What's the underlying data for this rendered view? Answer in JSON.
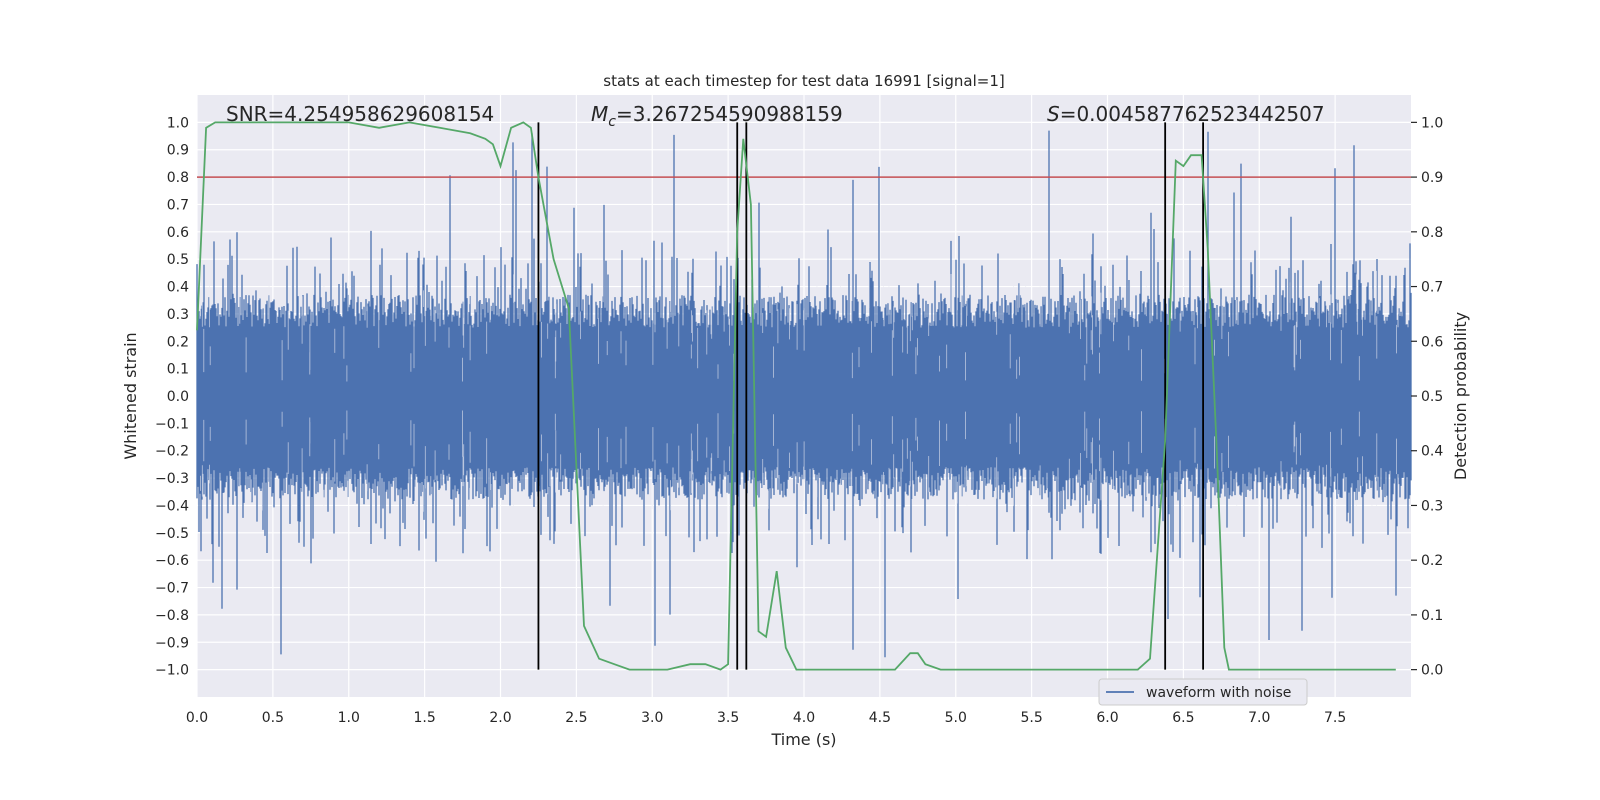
{
  "chart_data": {
    "type": "line",
    "title": "stats at each timestep for test data 16991 [signal=1]",
    "xlabel": "Time (s)",
    "ylabel": "Whitened strain",
    "y2label": "Detection probability",
    "xlim": [
      0.0,
      8.0
    ],
    "ylim": [
      -1.1,
      1.1
    ],
    "y2lim": [
      -0.05,
      1.05
    ],
    "x_ticks": [
      0.0,
      0.5,
      1.0,
      1.5,
      2.0,
      2.5,
      3.0,
      3.5,
      4.0,
      4.5,
      5.0,
      5.5,
      6.0,
      6.5,
      7.0,
      7.5
    ],
    "x_tick_labels": [
      "0.0",
      "0.5",
      "1.0",
      "1.5",
      "2.0",
      "2.5",
      "3.0",
      "3.5",
      "4.0",
      "4.5",
      "5.0",
      "5.5",
      "6.0",
      "6.5",
      "7.0",
      "7.5"
    ],
    "y_ticks": [
      1.0,
      0.9,
      0.8,
      0.7,
      0.6,
      0.5,
      0.4,
      0.3,
      0.2,
      0.1,
      0.0,
      -0.1,
      -0.2,
      -0.3,
      -0.4,
      -0.5,
      -0.6,
      -0.7,
      -0.8,
      -0.9,
      -1.0
    ],
    "y_tick_labels": [
      "1.0",
      "0.9",
      "0.8",
      "0.7",
      "0.6",
      "0.5",
      "0.4",
      "0.3",
      "0.2",
      "0.1",
      "0.0",
      "−0.1",
      "−0.2",
      "−0.3",
      "−0.4",
      "−0.5",
      "−0.6",
      "−0.7",
      "−0.8",
      "−0.9",
      "−1.0"
    ],
    "y2_ticks": [
      1.0,
      0.9,
      0.8,
      0.7,
      0.6,
      0.5,
      0.4,
      0.3,
      0.2,
      0.1,
      0.0
    ],
    "y2_tick_labels": [
      "1.0",
      "0.9",
      "0.8",
      "0.7",
      "0.6",
      "0.5",
      "0.4",
      "0.3",
      "0.2",
      "0.1",
      "0.0"
    ],
    "threshold": 0.9,
    "event_lines_s": [
      2.25,
      3.56,
      3.62,
      6.38,
      6.63
    ],
    "legend": {
      "label": "waveform with noise",
      "placement": "lower-right"
    },
    "annotations": {
      "snr": "SNR=4.254958629608154",
      "mc_symbol": "M",
      "mc_sub": "c",
      "mc_value": "=3.267254590988159",
      "s_symbol": "S",
      "s_value": "=0.004587762523442507"
    },
    "series": [
      {
        "name": "waveform with noise",
        "role": "strain",
        "color": "#4c72b0",
        "axis": "left"
      },
      {
        "name": "detection probability",
        "role": "probability",
        "color": "#55a868",
        "axis": "right",
        "x": [
          0.0,
          0.06,
          0.12,
          0.5,
          1.0,
          1.2,
          1.4,
          1.6,
          1.8,
          1.9,
          1.95,
          2.0,
          2.07,
          2.15,
          2.2,
          2.25,
          2.35,
          2.45,
          2.55,
          2.6,
          2.65,
          2.75,
          2.85,
          3.0,
          3.1,
          3.25,
          3.35,
          3.45,
          3.5,
          3.56,
          3.6,
          3.65,
          3.7,
          3.75,
          3.82,
          3.88,
          3.95,
          4.0,
          4.1,
          4.2,
          4.4,
          4.5,
          4.6,
          4.7,
          4.75,
          4.8,
          4.9,
          5.0,
          5.5,
          5.8,
          6.0,
          6.2,
          6.28,
          6.38,
          6.45,
          6.5,
          6.55,
          6.62,
          6.66,
          6.72,
          6.77,
          6.8,
          6.9,
          7.2,
          7.5,
          7.9
        ],
        "values": [
          0.62,
          0.99,
          1.0,
          1.0,
          1.0,
          0.99,
          1.0,
          0.99,
          0.98,
          0.97,
          0.96,
          0.92,
          0.99,
          1.0,
          0.99,
          0.9,
          0.75,
          0.66,
          0.08,
          0.05,
          0.02,
          0.01,
          0.0,
          0.0,
          0.0,
          0.01,
          0.01,
          0.0,
          0.01,
          0.8,
          0.97,
          0.85,
          0.07,
          0.06,
          0.18,
          0.04,
          0.0,
          0.0,
          0.0,
          0.0,
          0.0,
          0.0,
          0.0,
          0.03,
          0.03,
          0.01,
          0.0,
          0.0,
          0.0,
          0.0,
          0.0,
          0.0,
          0.02,
          0.42,
          0.93,
          0.92,
          0.94,
          0.94,
          0.77,
          0.4,
          0.04,
          0.0,
          0.0,
          0.0,
          0.0,
          0.0
        ]
      }
    ]
  }
}
